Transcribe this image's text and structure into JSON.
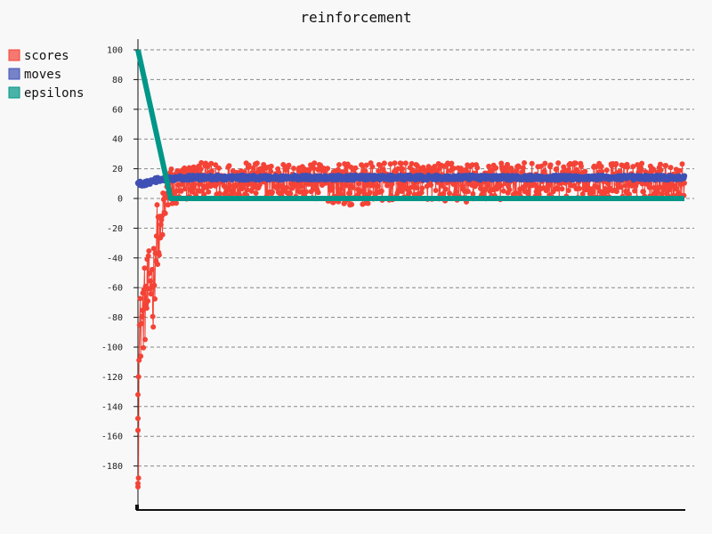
{
  "chart_data": {
    "type": "line",
    "title": "reinforcement",
    "xlabel": "",
    "ylabel": "",
    "ylim": [
      -200,
      105
    ],
    "xlim": [
      0,
      1000
    ],
    "y_ticks": [
      100,
      80,
      60,
      40,
      20,
      0,
      -20,
      -40,
      -60,
      -80,
      -100,
      -120,
      -140,
      -160,
      -180
    ],
    "grid": true,
    "legend_position": "top-left",
    "series": [
      {
        "name": "scores",
        "color": "#f44336",
        "x": [
          0,
          1,
          3,
          5,
          8,
          12,
          16,
          20,
          24,
          28,
          32,
          36,
          40,
          45,
          50,
          55,
          60,
          80,
          100,
          200,
          300,
          400,
          500,
          600,
          700,
          800,
          900,
          1000
        ],
        "values": [
          -194,
          -150,
          -110,
          -100,
          -90,
          -80,
          -75,
          -55,
          -50,
          -70,
          -20,
          -10,
          -30,
          -10,
          -5,
          0,
          5,
          8,
          10,
          12,
          12,
          12,
          12,
          12,
          12,
          12,
          12,
          12
        ],
        "band_upper": [
          -85,
          -75,
          -65,
          -60,
          -55,
          -45,
          -40,
          -35,
          -30,
          -30,
          -10,
          0,
          -10,
          5,
          10,
          18,
          22,
          22,
          24,
          24,
          24,
          24,
          24,
          24,
          24,
          24,
          24,
          24
        ],
        "band_lower": [
          -194,
          -190,
          -120,
          -112,
          -105,
          -100,
          -96,
          -85,
          -78,
          -92,
          -60,
          -45,
          -55,
          -30,
          -20,
          -10,
          -8,
          -5,
          0,
          0,
          0,
          -5,
          0,
          -3,
          0,
          0,
          0,
          0
        ]
      },
      {
        "name": "moves",
        "color": "#3f51b5",
        "x": [
          0,
          10,
          20,
          30,
          40,
          50,
          60,
          70,
          100,
          200,
          300,
          400,
          500,
          600,
          700,
          800,
          900,
          1000
        ],
        "values": [
          10,
          10,
          11,
          12,
          13,
          13,
          13,
          14,
          14,
          14,
          14,
          14,
          14,
          14,
          14,
          14,
          14,
          14
        ]
      },
      {
        "name": "epsilons",
        "color": "#009688",
        "x": [
          0,
          60,
          1000
        ],
        "values": [
          100,
          0,
          0
        ]
      }
    ]
  }
}
